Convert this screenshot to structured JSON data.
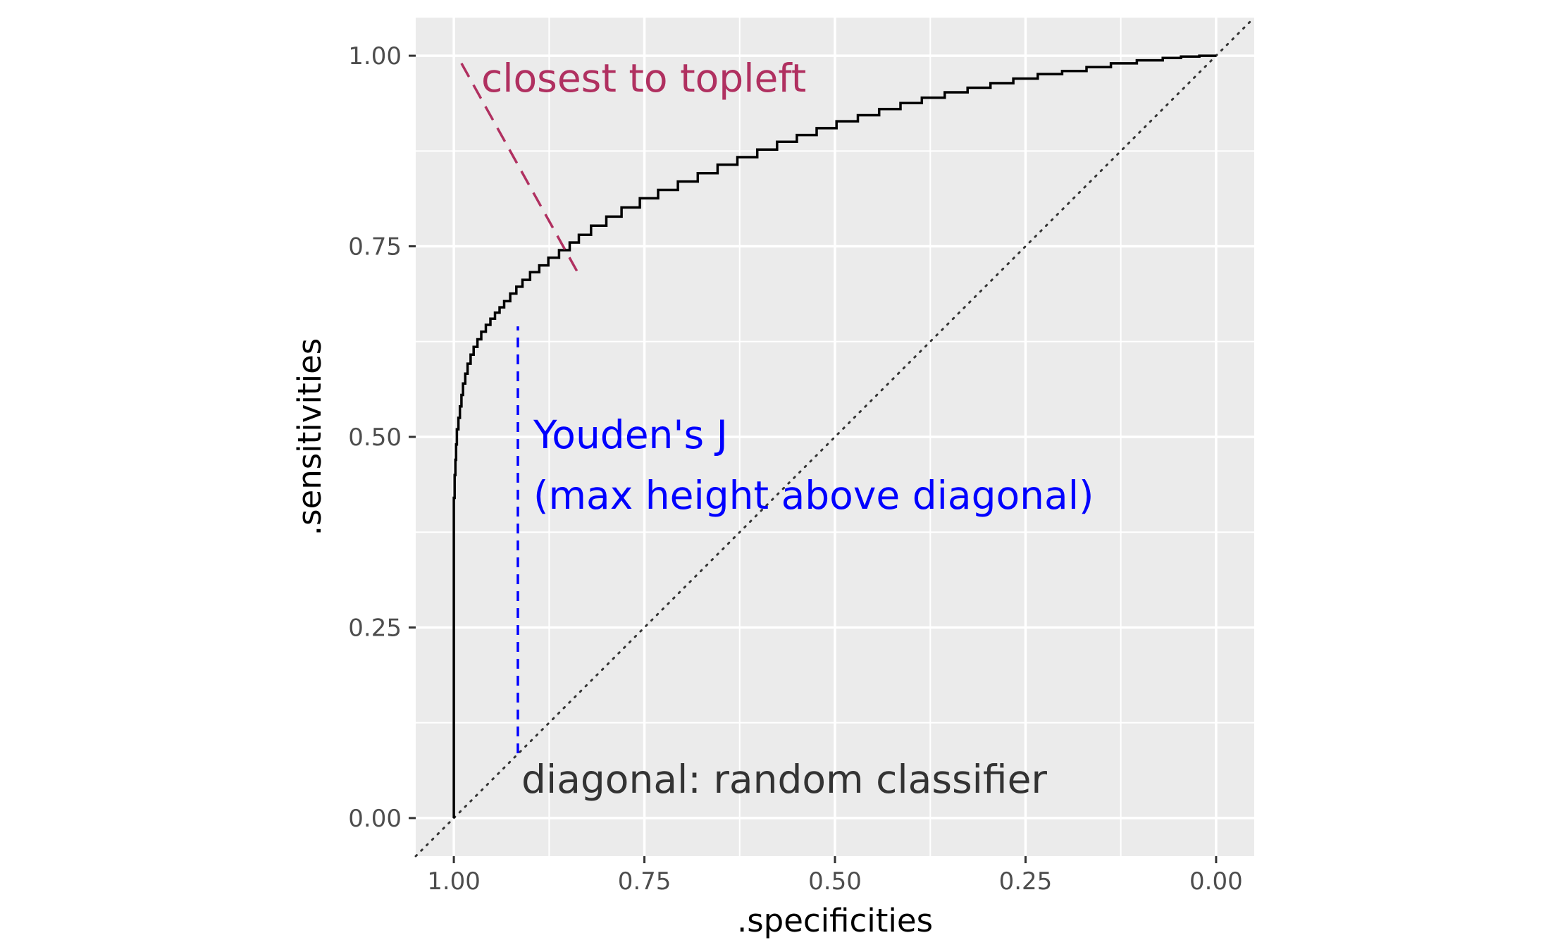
{
  "chart_data": {
    "type": "line",
    "title": "",
    "xlabel": ".specificities",
    "ylabel": ".sensitivities",
    "x_reversed": true,
    "xlim": [
      1.05,
      -0.05
    ],
    "ylim": [
      -0.05,
      1.05
    ],
    "x_ticks": [
      1.0,
      0.75,
      0.5,
      0.25,
      0.0
    ],
    "x_tick_labels": [
      "1.00",
      "0.75",
      "0.50",
      "0.25",
      "0.00"
    ],
    "y_ticks": [
      0.0,
      0.25,
      0.5,
      0.75,
      1.0
    ],
    "y_tick_labels": [
      "0.00",
      "0.25",
      "0.50",
      "0.75",
      "1.00"
    ],
    "grid": true,
    "legend": "none",
    "colors": {
      "panel": "#ebebeb",
      "grid": "#ffffff",
      "roc": "#000000",
      "topleft": "#b03060",
      "youden": "#0000ff",
      "diagonal": "#333333"
    },
    "roc_curve": {
      "name": "",
      "x": [
        1.0,
        1.0,
        1.0,
        1.0,
        0.999,
        0.998,
        0.997,
        0.996,
        0.994,
        0.992,
        0.99,
        0.988,
        0.985,
        0.982,
        0.978,
        0.974,
        0.969,
        0.964,
        0.958,
        0.952,
        0.946,
        0.94,
        0.934,
        0.926,
        0.918,
        0.91,
        0.9,
        0.888,
        0.876,
        0.862,
        0.848,
        0.836,
        0.82,
        0.8,
        0.78,
        0.756,
        0.732,
        0.706,
        0.68,
        0.654,
        0.628,
        0.602,
        0.576,
        0.55,
        0.524,
        0.498,
        0.47,
        0.442,
        0.414,
        0.386,
        0.356,
        0.326,
        0.296,
        0.266,
        0.234,
        0.202,
        0.17,
        0.138,
        0.104,
        0.07,
        0.046,
        0.022,
        0.0
      ],
      "y": [
        0.0,
        0.2,
        0.32,
        0.38,
        0.42,
        0.45,
        0.47,
        0.49,
        0.51,
        0.525,
        0.54,
        0.555,
        0.57,
        0.583,
        0.596,
        0.608,
        0.618,
        0.628,
        0.638,
        0.647,
        0.655,
        0.663,
        0.67,
        0.678,
        0.688,
        0.697,
        0.706,
        0.716,
        0.725,
        0.735,
        0.745,
        0.755,
        0.765,
        0.777,
        0.789,
        0.801,
        0.813,
        0.824,
        0.835,
        0.846,
        0.857,
        0.867,
        0.877,
        0.887,
        0.896,
        0.905,
        0.914,
        0.922,
        0.93,
        0.938,
        0.945,
        0.952,
        0.958,
        0.964,
        0.97,
        0.976,
        0.98,
        0.985,
        0.99,
        0.994,
        0.997,
        0.999,
        1.0
      ]
    },
    "diagonal": {
      "x": [
        1.05,
        -0.05
      ],
      "y": [
        -0.05,
        1.05
      ]
    },
    "topleft_segment": {
      "x": [
        0.99,
        0.836
      ],
      "y": [
        0.99,
        0.713
      ]
    },
    "youden_segment": {
      "x": [
        0.916,
        0.916
      ],
      "y": [
        0.085,
        0.645
      ]
    },
    "annotations": {
      "topleft": "closest to topleft",
      "youden_line1": "Youden's J",
      "youden_line2": "(max height above diagonal)",
      "diagonal": "diagonal: random classifier"
    }
  }
}
